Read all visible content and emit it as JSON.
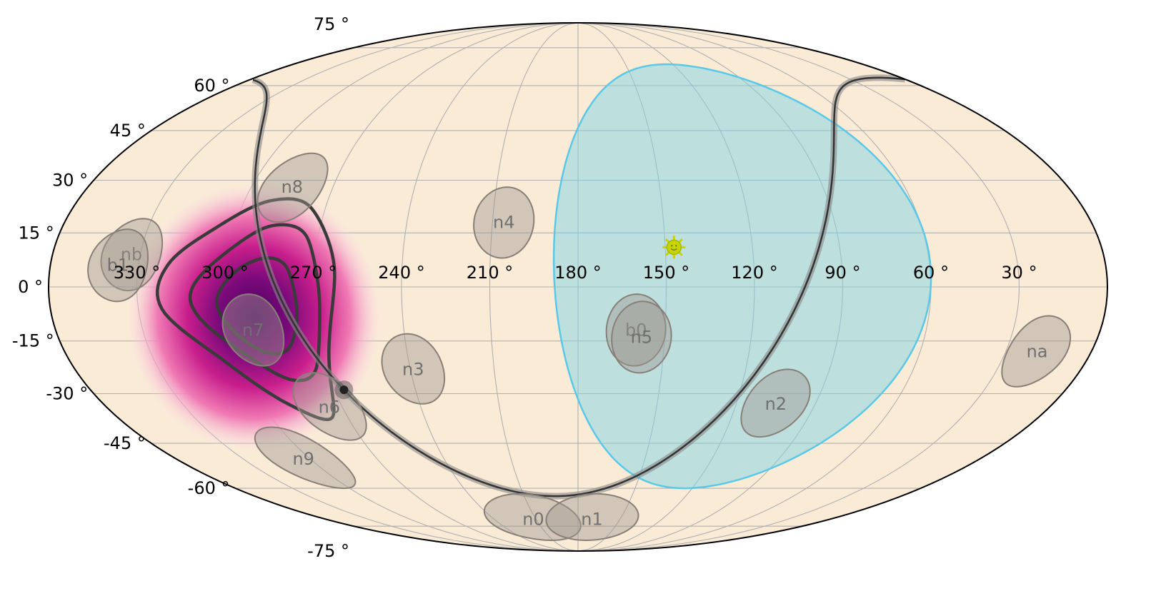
{
  "chart_data": {
    "type": "skymap",
    "projection": "mollweide",
    "grid": true,
    "colors": {
      "background": "#faebd7",
      "grid": "#b0b0b0",
      "frame": "#000000",
      "occultation": "#7fd3e6",
      "occultation_edge": "#5bc8e8",
      "detector": "#a09890",
      "contour": "#3a3a3a",
      "sun": "#c8d400",
      "plane": "#555555"
    },
    "ra_tick_labels": [
      {
        "ra": 330,
        "text": "330$^\\circ$"
      },
      {
        "ra": 300,
        "text": "300$^\\circ$"
      },
      {
        "ra": 270,
        "text": "270$^\\circ$"
      },
      {
        "ra": 240,
        "text": "240$^\\circ$"
      },
      {
        "ra": 210,
        "text": "210$^\\circ$"
      },
      {
        "ra": 180,
        "text": "180$^\\circ$"
      },
      {
        "ra": 150,
        "text": "150$^\\circ$"
      },
      {
        "ra": 120,
        "text": "120$^\\circ$"
      },
      {
        "ra": 90,
        "text": "90$^\\circ$"
      },
      {
        "ra": 60,
        "text": "60$^\\circ$"
      },
      {
        "ra": 30,
        "text": "30$^\\circ$"
      }
    ],
    "dec_tick_labels": [
      {
        "dec": 75,
        "text": "75$^\\circ$"
      },
      {
        "dec": 60,
        "text": "60$^\\circ$"
      },
      {
        "dec": 45,
        "text": "45$^\\circ$"
      },
      {
        "dec": 30,
        "text": "30$^\\circ$"
      },
      {
        "dec": 15,
        "text": "15$^\\circ$"
      },
      {
        "dec": 0,
        "text": "0$^\\circ$"
      },
      {
        "dec": -15,
        "text": "-15$^\\circ$"
      },
      {
        "dec": -30,
        "text": "-30$^\\circ$"
      },
      {
        "dec": -45,
        "text": "-45$^\\circ$"
      },
      {
        "dec": -60,
        "text": "-60$^\\circ$"
      },
      {
        "dec": -75,
        "text": "-75$^\\circ$"
      }
    ],
    "detectors": [
      {
        "name": "nb",
        "ra": 333,
        "dec": 9
      },
      {
        "name": "b1",
        "ra": 337,
        "dec": 6
      },
      {
        "name": "n8",
        "ra": 285,
        "dec": 28
      },
      {
        "name": "n4",
        "ra": 206,
        "dec": 18
      },
      {
        "name": "n7",
        "ra": 292,
        "dec": -12
      },
      {
        "name": "n6",
        "ra": 275,
        "dec": -34
      },
      {
        "name": "n3",
        "ra": 239,
        "dec": -23
      },
      {
        "name": "n9",
        "ra": 303,
        "dec": -50
      },
      {
        "name": "n0",
        "ra": 212,
        "dec": -72
      },
      {
        "name": "n1",
        "ra": 170,
        "dec": -72
      },
      {
        "name": "b0",
        "ra": 160,
        "dec": -12
      },
      {
        "name": "n5",
        "ra": 158,
        "dec": -14
      },
      {
        "name": "n2",
        "ra": 105,
        "dec": -33
      },
      {
        "name": "na",
        "ra": 19,
        "dec": -18
      }
    ],
    "sun": {
      "ra": 147,
      "dec": 11
    },
    "location_peak": {
      "ra": 292,
      "dec": -6
    },
    "galactic_center": {
      "ra": 266.4,
      "dec": -28.9
    }
  }
}
